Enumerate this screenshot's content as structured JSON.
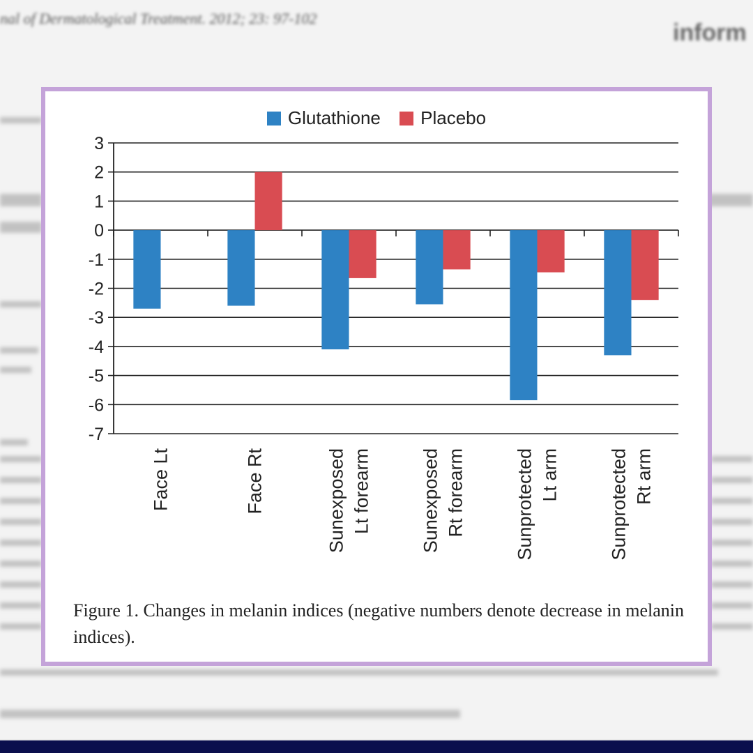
{
  "background": {
    "journal_header": "nal of Dermatological Treatment. 2012; 23: 97-102",
    "brand": "inform"
  },
  "figure": {
    "caption": "Figure 1. Changes in melanin indices (negative numbers denote decrease in melanin indices)."
  },
  "colors": {
    "glutathione": "#2e82c4",
    "placebo": "#d94c52",
    "frame": "#c4a3d9"
  },
  "chart_data": {
    "type": "bar",
    "categories": [
      [
        "Face Lt"
      ],
      [
        "Face Rt"
      ],
      [
        "Sunexposed",
        "Lt forearm"
      ],
      [
        "Sunexposed",
        "Rt forearm"
      ],
      [
        "Sunprotected",
        "Lt arm"
      ],
      [
        "Sunprotected",
        "Rt arm"
      ]
    ],
    "series": [
      {
        "name": "Glutathione",
        "values": [
          -2.7,
          -2.6,
          -4.1,
          -2.55,
          -5.85,
          -4.3
        ]
      },
      {
        "name": "Placebo",
        "values": [
          0,
          2.0,
          -1.65,
          -1.35,
          -1.45,
          -2.4
        ]
      }
    ],
    "ylim": [
      -7,
      3
    ],
    "yticks": [
      "3",
      "2",
      "1",
      "0",
      "-1",
      "-2",
      "-3",
      "-4",
      "-5",
      "-6",
      "-7"
    ],
    "grid": true,
    "legend_position": "top-center"
  }
}
